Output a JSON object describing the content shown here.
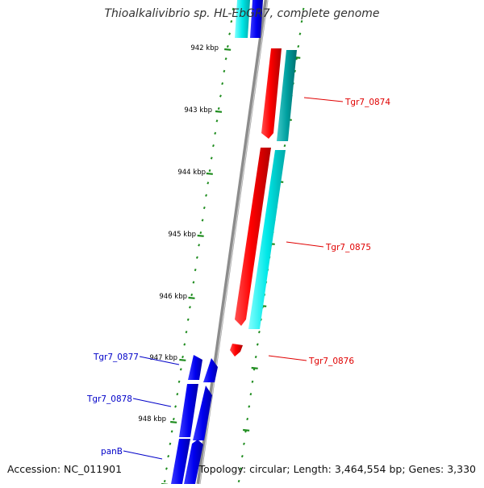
{
  "title": "Thioalkalivibrio sp. HL-EbGR7, complete genome",
  "footer": {
    "accession": "Accession: NC_011901",
    "summary": "Topology: circular; Length: 3,464,554 bp; Genes: 3,330"
  },
  "ticks": [
    "942 kbp",
    "943 kbp",
    "944 kbp",
    "945 kbp",
    "946 kbp",
    "947 kbp",
    "948 kbp"
  ],
  "genes_forward": [
    {
      "label": "Tgr7_0874",
      "color": "#e00000"
    },
    {
      "label": "Tgr7_0875",
      "color": "#e00000"
    },
    {
      "label": "Tgr7_0876",
      "color": "#e00000"
    }
  ],
  "genes_reverse": [
    {
      "label": "Tgr7_0877",
      "color": "#0000c8"
    },
    {
      "label": "Tgr7_0878",
      "color": "#0000c8"
    },
    {
      "label": "panB",
      "color": "#0000c8"
    }
  ],
  "colors": {
    "forward_cds": "#ff0000",
    "forward_orf": "#00e5e5",
    "reverse_cds": "#0000ff",
    "backbone": "#8c8c8c",
    "tick": "#1e8c1e"
  }
}
